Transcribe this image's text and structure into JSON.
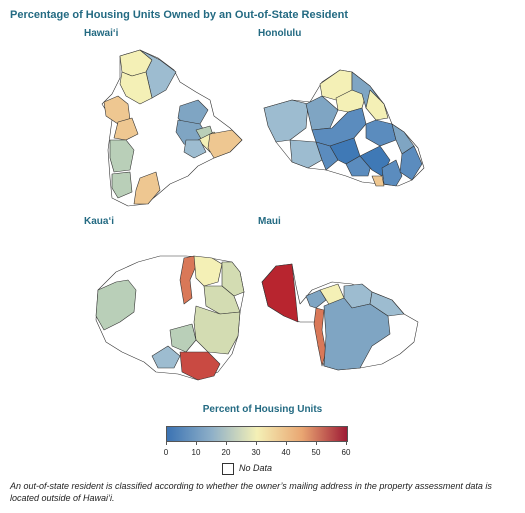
{
  "title": "Percentage of Housing Units Owned by an Out-of-State Resident",
  "panels": {
    "hawaii": "Hawai‘i",
    "honolulu": "Honolulu",
    "kauai": "Kaua‘i",
    "maui": "Maui"
  },
  "legend": {
    "title": "Percent of Housing Units",
    "ticks": [
      "0",
      "10",
      "20",
      "30",
      "40",
      "50",
      "60"
    ],
    "range": [
      0,
      60
    ],
    "colors": [
      "#3b73b3",
      "#8fb0c8",
      "#f4f0b6",
      "#e9a672",
      "#9e1b35"
    ],
    "no_data_label": "No Data"
  },
  "footnote": "An out-of-state resident is classified according to whether the owner’s mailing address in the property assessment data is located outside of Hawai‘i."
}
